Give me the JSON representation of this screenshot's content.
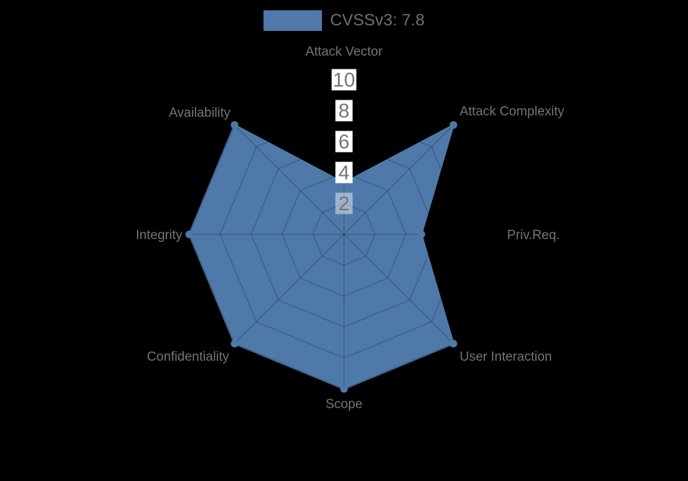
{
  "legend": {
    "label": "CVSSv3: 7.8",
    "swatch_color": "#4e79a8",
    "text_color": "#6f6f6f"
  },
  "chart_data": {
    "type": "radar",
    "title": "CVSSv3: 7.8",
    "axes": [
      "Attack Vector",
      "Attack Complexity",
      "Priv.Req.",
      "User Interaction",
      "Scope",
      "Confidentiality",
      "Integrity",
      "Availability"
    ],
    "series": [
      {
        "name": "CVSSv3: 7.8",
        "values": [
          3.33,
          10,
          5,
          10,
          10,
          10,
          10,
          10
        ],
        "color": "#4e79a8"
      }
    ],
    "scale": {
      "min": 0,
      "max": 10,
      "tick_interval": 2,
      "ticks": [
        2,
        4,
        6,
        8,
        10
      ]
    },
    "grid": "spider-web",
    "legend_position": "top-center",
    "colors": {
      "background": "#000000",
      "series_fill": "#4e79a8",
      "grid_line_overlay": "rgba(0,0,0,0.2)",
      "axis_label": "#747474",
      "tick_label": "#757575",
      "tick_box_bg": "#ffffff"
    }
  }
}
